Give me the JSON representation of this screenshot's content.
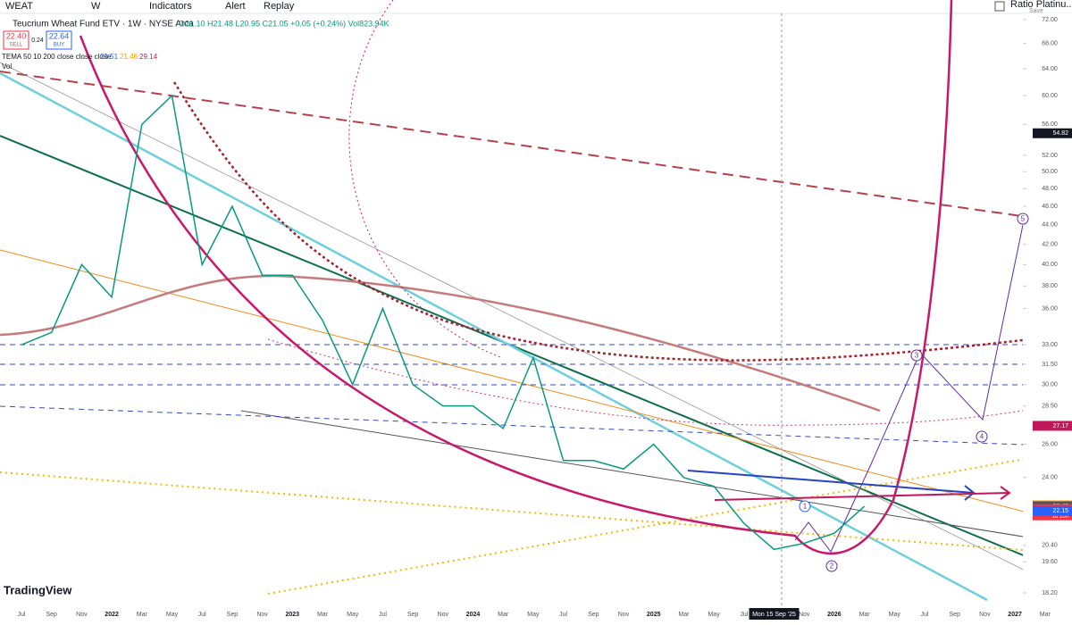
{
  "toolbar": {
    "symbol": "WEAT",
    "interval": "W",
    "indicators": "Indicators",
    "alert": "Alert",
    "replay": "Replay",
    "layout": "Ratio Platinu...",
    "save": "Save"
  },
  "legend": {
    "title": "Teucrium Wheat Fund ETV · 1W · NYSE Arca",
    "ohlc": "O21.10 H21.48 L20.95 C21.05 +0.05 (+0.24%) Vol823.94K",
    "sell_price": "22.40",
    "sell": "SELL",
    "spread": "0.24",
    "buy_price": "22.64",
    "buy": "BUY",
    "tema": "TEMA 50 10 200 close close close",
    "tema_values": [
      "23.51",
      "21.46",
      "29.14"
    ],
    "vol": "Vol"
  },
  "chart_data": {
    "type": "line",
    "log_scale": true,
    "categories": [
      "Jul",
      "Sep",
      "Nov",
      "2022",
      "Mar",
      "May",
      "Jul",
      "Sep",
      "Nov",
      "2023",
      "Mar",
      "May",
      "Jul",
      "Sep",
      "Nov",
      "2024",
      "Mar",
      "May",
      "Jul",
      "Sep",
      "Nov",
      "2025",
      "Mar",
      "May",
      "Jul",
      null,
      "Nov",
      "2026",
      "Mar",
      "May",
      "Jul",
      "Sep",
      "Nov",
      "2027",
      "Mar"
    ],
    "series": [
      {
        "name": "WEAT",
        "color": "#089981",
        "values": [
          33,
          34,
          40,
          37,
          56,
          60,
          40,
          46,
          39,
          39,
          35,
          30,
          36,
          30,
          28.5,
          28.5,
          27,
          32,
          25,
          25,
          24.5,
          26,
          24,
          23.5,
          21.5,
          20.2,
          20.5,
          21,
          22.4,
          null,
          null,
          null,
          null,
          null,
          null
        ]
      }
    ],
    "ylim": [
      18.2,
      72
    ],
    "yticks": [
      {
        "value": 72,
        "label": "72.00"
      },
      {
        "value": 68,
        "label": "68.00"
      },
      {
        "value": 64,
        "label": "64.00"
      },
      {
        "value": 60,
        "label": "60.00"
      },
      {
        "value": 56,
        "label": "56.00"
      },
      {
        "value": 52,
        "label": "52.00"
      },
      {
        "value": 50,
        "label": "50.00"
      },
      {
        "value": 48,
        "label": "48.00"
      },
      {
        "value": 46,
        "label": "46.00"
      },
      {
        "value": 44,
        "label": "44.00"
      },
      {
        "value": 42,
        "label": "42.00"
      },
      {
        "value": 40,
        "label": "40.00"
      },
      {
        "value": 38,
        "label": "38.00"
      },
      {
        "value": 36,
        "label": "36.00"
      },
      {
        "value": 33,
        "label": "33.00"
      },
      {
        "value": 31.5,
        "label": "31.50"
      },
      {
        "value": 30,
        "label": "30.00"
      },
      {
        "value": 28.5,
        "label": "28.50"
      },
      {
        "value": 26,
        "label": "26.00"
      },
      {
        "value": 24,
        "label": "24.00"
      },
      {
        "value": 20.4,
        "label": "20.40"
      },
      {
        "value": 19.6,
        "label": "19.60"
      },
      {
        "value": 18.2,
        "label": "18.20"
      }
    ],
    "crosshair": "Mon 15 Sep '25",
    "price_tags": [
      {
        "value": 54.82,
        "label": "54.82",
        "color": "#131722"
      },
      {
        "value": 27.17,
        "label": "27.17",
        "color": "#c2185b"
      },
      {
        "value": 22.45,
        "label": "22.45",
        "prefix": "Pre",
        "color": "#ff9800"
      },
      {
        "value": 22.4,
        "label": "22.40",
        "color": "#555"
      },
      {
        "value": 22.25,
        "label": "22.25",
        "sub": "1d 10h",
        "color": "#f23645"
      },
      {
        "value": 22.15,
        "label": "22.15",
        "color": "#2962ff"
      }
    ]
  },
  "waves": [
    "1",
    "2",
    "3",
    "4",
    "5"
  ],
  "logo": "TradingView"
}
